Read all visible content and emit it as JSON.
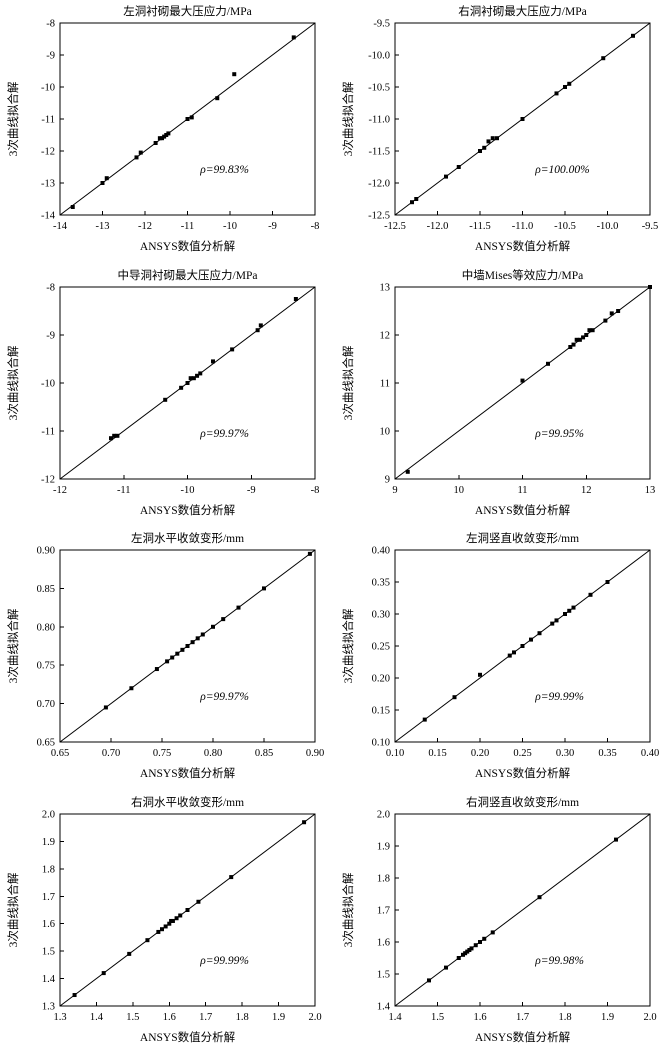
{
  "page": {
    "background": "#ffffff",
    "marker_color": "#000000",
    "line_color": "#000000",
    "axis_color": "#000000"
  },
  "chart_data": [
    {
      "type": "scatter",
      "title": "左洞衬砌最大压应力/MPa",
      "xlabel": "ANSYS数值分析解",
      "ylabel": "3次曲线拟合解",
      "xlim": [
        -14,
        -8
      ],
      "ylim": [
        -14,
        -8
      ],
      "ticks": [
        "-14",
        "-13",
        "-12",
        "-11",
        "-10",
        "-9",
        "-8"
      ],
      "grid": false,
      "legend": null,
      "annotation": "ρ=99.83%",
      "fit_line": [
        [
          -14,
          -14
        ],
        [
          -8,
          -8
        ]
      ],
      "points": [
        [
          -13.7,
          -13.75
        ],
        [
          -13.0,
          -13.0
        ],
        [
          -12.9,
          -12.85
        ],
        [
          -12.2,
          -12.2
        ],
        [
          -12.1,
          -12.05
        ],
        [
          -11.75,
          -11.75
        ],
        [
          -11.65,
          -11.6
        ],
        [
          -11.6,
          -11.6
        ],
        [
          -11.55,
          -11.55
        ],
        [
          -11.5,
          -11.5
        ],
        [
          -11.45,
          -11.45
        ],
        [
          -11.0,
          -11.0
        ],
        [
          -10.9,
          -10.95
        ],
        [
          -10.3,
          -10.35
        ],
        [
          -9.9,
          -9.6
        ],
        [
          -8.5,
          -8.45
        ]
      ]
    },
    {
      "type": "scatter",
      "title": "右洞衬砌最大压应力/MPa",
      "xlabel": "ANSYS数值分析解",
      "ylabel": "3次曲线拟合解",
      "xlim": [
        -12.5,
        -9.5
      ],
      "ylim": [
        -12.5,
        -9.5
      ],
      "ticks": [
        "-12.5",
        "-12.0",
        "-11.5",
        "-11.0",
        "-10.5",
        "-10.0",
        "-9.5"
      ],
      "grid": false,
      "legend": null,
      "annotation": "ρ=100.00%",
      "fit_line": [
        [
          -12.5,
          -12.5
        ],
        [
          -9.5,
          -9.5
        ]
      ],
      "points": [
        [
          -12.3,
          -12.3
        ],
        [
          -12.25,
          -12.25
        ],
        [
          -11.9,
          -11.9
        ],
        [
          -11.75,
          -11.75
        ],
        [
          -11.5,
          -11.5
        ],
        [
          -11.45,
          -11.45
        ],
        [
          -11.4,
          -11.35
        ],
        [
          -11.35,
          -11.3
        ],
        [
          -11.3,
          -11.3
        ],
        [
          -11.0,
          -11.0
        ],
        [
          -10.6,
          -10.6
        ],
        [
          -10.5,
          -10.5
        ],
        [
          -10.45,
          -10.45
        ],
        [
          -10.05,
          -10.05
        ],
        [
          -9.7,
          -9.7
        ]
      ]
    },
    {
      "type": "scatter",
      "title": "中导洞衬砌最大压应力/MPa",
      "xlabel": "ANSYS数值分析解",
      "ylabel": "3次曲线拟合解",
      "xlim": [
        -12,
        -8
      ],
      "ylim": [
        -12,
        -8
      ],
      "ticks": [
        "-12",
        "-11",
        "-10",
        "-9",
        "-8"
      ],
      "grid": false,
      "legend": null,
      "annotation": "ρ=99.97%",
      "fit_line": [
        [
          -12,
          -12
        ],
        [
          -8,
          -8
        ]
      ],
      "points": [
        [
          -11.2,
          -11.15
        ],
        [
          -11.15,
          -11.1
        ],
        [
          -11.1,
          -11.1
        ],
        [
          -10.35,
          -10.35
        ],
        [
          -10.1,
          -10.1
        ],
        [
          -10.0,
          -10.0
        ],
        [
          -9.95,
          -9.9
        ],
        [
          -9.9,
          -9.9
        ],
        [
          -9.85,
          -9.85
        ],
        [
          -9.8,
          -9.8
        ],
        [
          -9.6,
          -9.55
        ],
        [
          -9.3,
          -9.3
        ],
        [
          -8.9,
          -8.9
        ],
        [
          -8.85,
          -8.8
        ],
        [
          -8.3,
          -8.25
        ]
      ]
    },
    {
      "type": "scatter",
      "title": "中墙Mises等效应力/MPa",
      "xlabel": "ANSYS数值分析解",
      "ylabel": "3次曲线拟合解",
      "xlim": [
        9,
        13
      ],
      "ylim": [
        9,
        13
      ],
      "ticks": [
        "9",
        "10",
        "11",
        "12",
        "13"
      ],
      "grid": false,
      "legend": null,
      "annotation": "ρ=99.95%",
      "fit_line": [
        [
          9,
          9
        ],
        [
          13,
          13
        ]
      ],
      "points": [
        [
          9.2,
          9.15
        ],
        [
          11.0,
          11.05
        ],
        [
          11.4,
          11.4
        ],
        [
          11.75,
          11.75
        ],
        [
          11.8,
          11.8
        ],
        [
          11.85,
          11.9
        ],
        [
          11.9,
          11.9
        ],
        [
          11.95,
          11.95
        ],
        [
          12.0,
          12.0
        ],
        [
          12.05,
          12.1
        ],
        [
          12.1,
          12.1
        ],
        [
          12.3,
          12.3
        ],
        [
          12.4,
          12.45
        ],
        [
          12.5,
          12.5
        ],
        [
          13.0,
          13.0
        ]
      ]
    },
    {
      "type": "scatter",
      "title": "左洞水平收敛变形/mm",
      "xlabel": "ANSYS数值分析解",
      "ylabel": "3次曲线拟合解",
      "xlim": [
        0.65,
        0.9
      ],
      "ylim": [
        0.65,
        0.9
      ],
      "ticks": [
        "0.65",
        "0.70",
        "0.75",
        "0.80",
        "0.85",
        "0.90"
      ],
      "grid": false,
      "legend": null,
      "annotation": "ρ=99.97%",
      "fit_line": [
        [
          0.65,
          0.65
        ],
        [
          0.9,
          0.9
        ]
      ],
      "points": [
        [
          0.695,
          0.695
        ],
        [
          0.72,
          0.72
        ],
        [
          0.745,
          0.745
        ],
        [
          0.755,
          0.755
        ],
        [
          0.76,
          0.76
        ],
        [
          0.765,
          0.765
        ],
        [
          0.77,
          0.77
        ],
        [
          0.775,
          0.775
        ],
        [
          0.78,
          0.78
        ],
        [
          0.785,
          0.785
        ],
        [
          0.79,
          0.79
        ],
        [
          0.8,
          0.8
        ],
        [
          0.81,
          0.81
        ],
        [
          0.825,
          0.825
        ],
        [
          0.85,
          0.85
        ],
        [
          0.895,
          0.895
        ]
      ]
    },
    {
      "type": "scatter",
      "title": "左洞竖直收敛变形/mm",
      "xlabel": "ANSYS数值分析解",
      "ylabel": "3次曲线拟合解",
      "xlim": [
        0.1,
        0.4
      ],
      "ylim": [
        0.1,
        0.4
      ],
      "ticks": [
        "0.10",
        "0.15",
        "0.20",
        "0.25",
        "0.30",
        "0.35",
        "0.40"
      ],
      "grid": false,
      "legend": null,
      "annotation": "ρ=99.99%",
      "fit_line": [
        [
          0.1,
          0.1
        ],
        [
          0.4,
          0.4
        ]
      ],
      "points": [
        [
          0.135,
          0.135
        ],
        [
          0.17,
          0.17
        ],
        [
          0.2,
          0.205
        ],
        [
          0.235,
          0.235
        ],
        [
          0.24,
          0.24
        ],
        [
          0.25,
          0.25
        ],
        [
          0.26,
          0.26
        ],
        [
          0.27,
          0.27
        ],
        [
          0.285,
          0.285
        ],
        [
          0.29,
          0.29
        ],
        [
          0.3,
          0.3
        ],
        [
          0.305,
          0.305
        ],
        [
          0.31,
          0.31
        ],
        [
          0.33,
          0.33
        ],
        [
          0.35,
          0.35
        ]
      ]
    },
    {
      "type": "scatter",
      "title": "右洞水平收敛变形/mm",
      "xlabel": "ANSYS数值分析解",
      "ylabel": "3次曲线拟合解",
      "xlim": [
        1.3,
        2.0
      ],
      "ylim": [
        1.3,
        2.0
      ],
      "ticks": [
        "1.3",
        "1.4",
        "1.5",
        "1.6",
        "1.7",
        "1.8",
        "1.9",
        "2.0"
      ],
      "grid": false,
      "legend": null,
      "annotation": "ρ=99.99%",
      "fit_line": [
        [
          1.3,
          1.3
        ],
        [
          2.0,
          2.0
        ]
      ],
      "points": [
        [
          1.34,
          1.34
        ],
        [
          1.42,
          1.42
        ],
        [
          1.49,
          1.49
        ],
        [
          1.54,
          1.54
        ],
        [
          1.57,
          1.57
        ],
        [
          1.58,
          1.58
        ],
        [
          1.59,
          1.59
        ],
        [
          1.6,
          1.6
        ],
        [
          1.605,
          1.61
        ],
        [
          1.61,
          1.61
        ],
        [
          1.62,
          1.62
        ],
        [
          1.63,
          1.63
        ],
        [
          1.65,
          1.65
        ],
        [
          1.68,
          1.68
        ],
        [
          1.77,
          1.77
        ],
        [
          1.97,
          1.97
        ]
      ]
    },
    {
      "type": "scatter",
      "title": "右洞竖直收敛变形/mm",
      "xlabel": "ANSYS数值分析解",
      "ylabel": "3次曲线拟合解",
      "xlim": [
        1.4,
        2.0
      ],
      "ylim": [
        1.4,
        2.0
      ],
      "ticks": [
        "1.4",
        "1.5",
        "1.6",
        "1.7",
        "1.8",
        "1.9",
        "2.0"
      ],
      "grid": false,
      "legend": null,
      "annotation": "ρ=99.98%",
      "fit_line": [
        [
          1.4,
          1.4
        ],
        [
          2.0,
          2.0
        ]
      ],
      "points": [
        [
          1.48,
          1.48
        ],
        [
          1.52,
          1.52
        ],
        [
          1.55,
          1.55
        ],
        [
          1.56,
          1.56
        ],
        [
          1.565,
          1.565
        ],
        [
          1.57,
          1.57
        ],
        [
          1.575,
          1.575
        ],
        [
          1.58,
          1.58
        ],
        [
          1.59,
          1.59
        ],
        [
          1.6,
          1.6
        ],
        [
          1.61,
          1.61
        ],
        [
          1.63,
          1.63
        ],
        [
          1.74,
          1.74
        ],
        [
          1.92,
          1.92
        ]
      ]
    }
  ]
}
